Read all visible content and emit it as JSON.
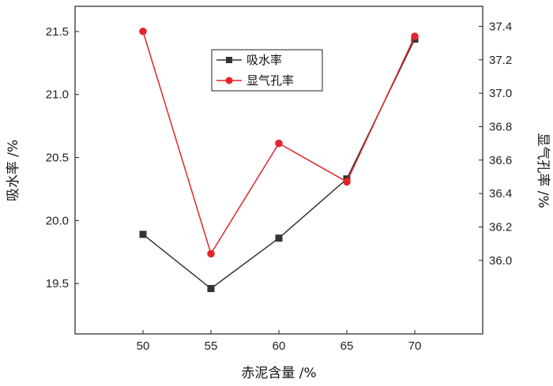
{
  "chart_data": {
    "type": "line",
    "x": [
      50,
      55,
      60,
      65,
      70
    ],
    "xlabel": "赤泥含量 /%",
    "ylabel_left": "吸水率 /%",
    "ylabel_right": "显气孔率 /%",
    "xlim": [
      45,
      75
    ],
    "ylim_left": [
      19.1,
      21.7
    ],
    "ylim_right": [
      35.56,
      37.52
    ],
    "x_ticks": [
      "50",
      "55",
      "60",
      "65",
      "70"
    ],
    "y_left_ticks": [
      "19.5",
      "20.0",
      "20.5",
      "21.0",
      "21.5"
    ],
    "y_right_ticks": [
      "36.0",
      "36.2",
      "36.4",
      "36.6",
      "36.8",
      "37.0",
      "37.2",
      "37.4"
    ],
    "legend_position": "top-center",
    "grid": false,
    "series": [
      {
        "name": "吸水率",
        "axis": "left",
        "marker": "square",
        "color": "#333333",
        "values": [
          19.89,
          19.46,
          19.86,
          20.33,
          21.44
        ]
      },
      {
        "name": "显气孔率",
        "axis": "right",
        "marker": "circle",
        "color": "#e3242b",
        "values": [
          37.37,
          36.04,
          36.7,
          36.47,
          37.34
        ]
      }
    ]
  }
}
